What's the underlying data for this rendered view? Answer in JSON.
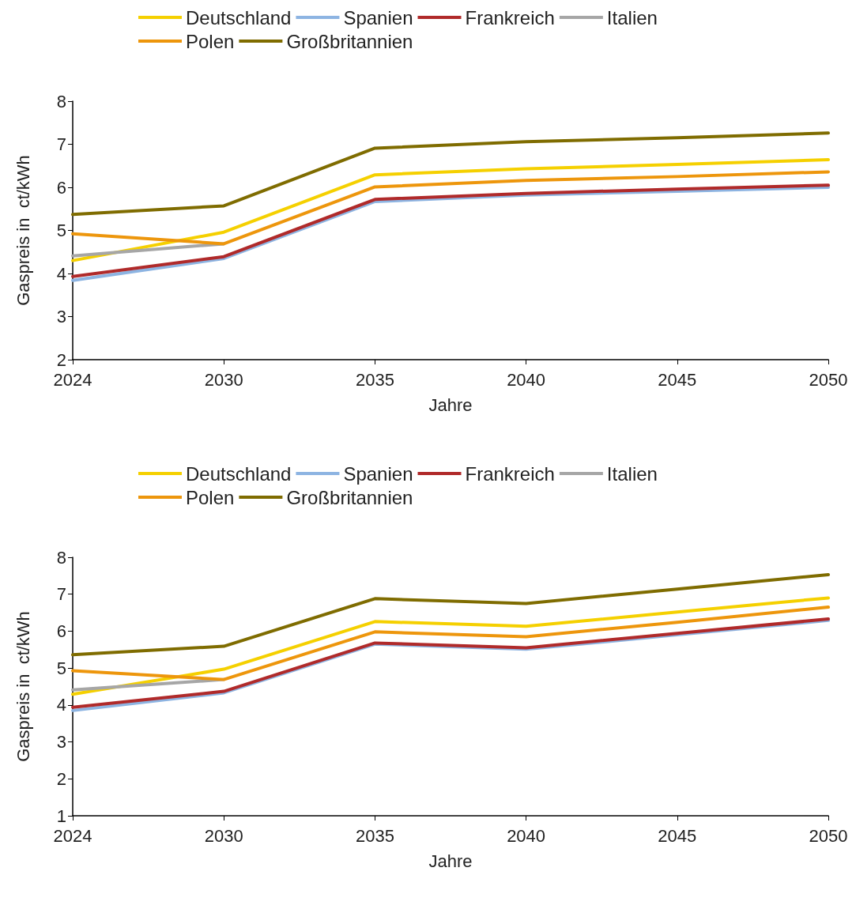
{
  "chart_data": [
    {
      "type": "line",
      "xlabel": "Jahre",
      "ylabel": "Gaspreis in  ct/kWh",
      "categories": [
        "2024",
        "2030",
        "2035",
        "2040",
        "2045",
        "2050"
      ],
      "ylim": [
        2,
        8
      ],
      "yticks": [
        2,
        3,
        4,
        5,
        6,
        7,
        8
      ],
      "grid": false,
      "legend": "top",
      "marker": "none",
      "line_style": "solid",
      "series": [
        {
          "name": "Deutschland",
          "color": "#f5d000",
          "values": [
            4.3,
            4.96,
            6.29,
            6.43,
            6.53,
            6.64
          ]
        },
        {
          "name": "Spanien",
          "color": "#8db4e2",
          "values": [
            3.84,
            4.35,
            5.67,
            5.82,
            5.91,
            6.0
          ]
        },
        {
          "name": "Frankreich",
          "color": "#b02a2a",
          "values": [
            3.93,
            4.39,
            5.72,
            5.86,
            5.96,
            6.05
          ]
        },
        {
          "name": "Italien",
          "color": "#a6a6a6",
          "values": [
            4.41,
            4.69,
            null,
            null,
            null,
            null
          ]
        },
        {
          "name": "Polen",
          "color": "#ed960c",
          "values": [
            4.92,
            4.69,
            6.01,
            6.16,
            6.25,
            6.36
          ]
        },
        {
          "name": "Großbritannien",
          "color": "#7f6c00",
          "values": [
            5.37,
            5.57,
            6.91,
            7.06,
            7.15,
            7.26
          ]
        }
      ]
    },
    {
      "type": "line",
      "xlabel": "Jahre",
      "ylabel": "Gaspreis in  ct/kWh",
      "categories": [
        "2024",
        "2030",
        "2035",
        "2040",
        "2045",
        "2050"
      ],
      "ylim": [
        1,
        8
      ],
      "yticks": [
        1,
        2,
        3,
        4,
        5,
        6,
        7,
        8
      ],
      "grid": false,
      "legend": "top",
      "marker": "none",
      "line_style": "solid",
      "series": [
        {
          "name": "Deutschland",
          "color": "#f5d000",
          "values": [
            4.29,
            4.97,
            6.26,
            6.13,
            6.52,
            6.9
          ]
        },
        {
          "name": "Spanien",
          "color": "#8db4e2",
          "values": [
            3.85,
            4.33,
            5.65,
            5.51,
            5.9,
            6.29
          ]
        },
        {
          "name": "Frankreich",
          "color": "#b02a2a",
          "values": [
            3.94,
            4.37,
            5.68,
            5.55,
            5.94,
            6.33
          ]
        },
        {
          "name": "Italien",
          "color": "#a6a6a6",
          "values": [
            4.41,
            4.69,
            null,
            null,
            null,
            null
          ]
        },
        {
          "name": "Polen",
          "color": "#ed960c",
          "values": [
            4.93,
            4.69,
            5.98,
            5.85,
            6.24,
            6.65
          ]
        },
        {
          "name": "Großbritannien",
          "color": "#7f6c00",
          "values": [
            5.36,
            5.59,
            6.88,
            6.75,
            7.14,
            7.53
          ]
        }
      ]
    }
  ]
}
